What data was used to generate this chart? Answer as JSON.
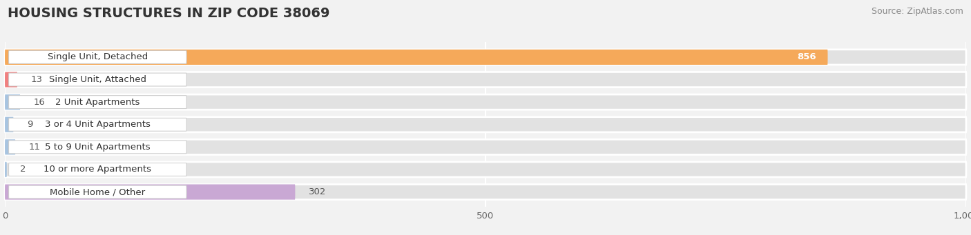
{
  "title": "HOUSING STRUCTURES IN ZIP CODE 38069",
  "source": "Source: ZipAtlas.com",
  "categories": [
    "Single Unit, Detached",
    "Single Unit, Attached",
    "2 Unit Apartments",
    "3 or 4 Unit Apartments",
    "5 to 9 Unit Apartments",
    "10 or more Apartments",
    "Mobile Home / Other"
  ],
  "values": [
    856,
    13,
    16,
    9,
    11,
    2,
    302
  ],
  "bar_colors": [
    "#F5A95A",
    "#F08080",
    "#A8C4E0",
    "#A8C4E0",
    "#A8C4E0",
    "#A8C4E0",
    "#C9A8D4"
  ],
  "xlim": [
    0,
    1000
  ],
  "xticks": [
    0,
    500,
    1000
  ],
  "background_color": "#f2f2f2",
  "bar_bg_color": "#e2e2e2",
  "title_fontsize": 14,
  "source_fontsize": 9,
  "label_fontsize": 9.5,
  "value_fontsize": 9.5
}
